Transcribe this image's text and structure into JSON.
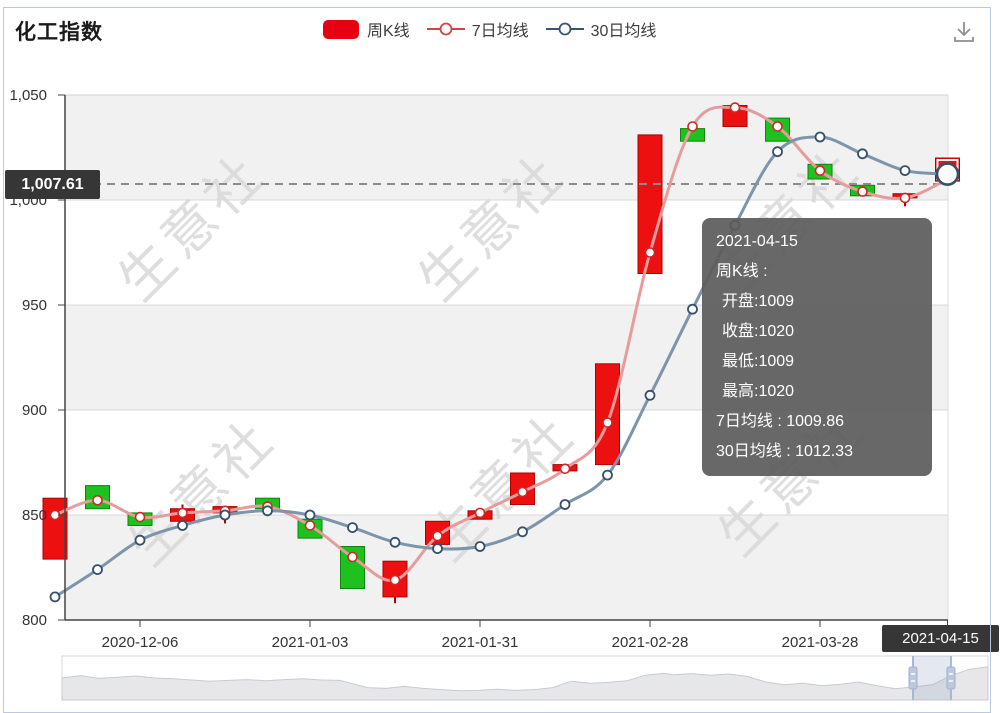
{
  "page": {
    "title": "化工指数"
  },
  "legend": [
    {
      "label": "周K线",
      "type": "candle",
      "color": "#e60012"
    },
    {
      "label": "7日均线",
      "type": "line",
      "line_color": "#e69c9c",
      "marker_color": "#cc2929"
    },
    {
      "label": "30日均线",
      "type": "line",
      "line_color": "#7e94aa",
      "marker_color": "#35506b"
    }
  ],
  "watermark": {
    "text": "生意社"
  },
  "tooltip": {
    "date": "2021-04-15",
    "series_title": "周K线 :",
    "rows": [
      "开盘:1009",
      "收盘:1020",
      "最低:1009",
      "最高:1020"
    ],
    "ma7": "7日均线 : 1009.86",
    "ma30": "30日均线 : 1012.33"
  },
  "chart_data": {
    "type": "candlestick",
    "title": "化工指数",
    "ylim": [
      800,
      1050
    ],
    "y_ticks": [
      800,
      850,
      900,
      950,
      1000,
      1050
    ],
    "y_tick_labels": [
      "800",
      "850",
      "900",
      "950",
      "1,000",
      "1,050"
    ],
    "x_tick_labels": [
      "2020-12-06",
      "2021-01-03",
      "2021-01-31",
      "2021-02-28",
      "2021-03-28",
      "2021-04-15"
    ],
    "x_tick_indices": [
      2,
      6,
      10,
      14,
      18,
      21
    ],
    "grid": "alternating-horizontal-bands",
    "legend_position": "top-center",
    "current_value": "1,007.61",
    "current_value_num": 1007.61,
    "up_color": "#ec1010",
    "down_color": "#1fc11f",
    "series": [
      {
        "name": "周K线",
        "type": "candlestick",
        "data": [
          {
            "date": "2020-11-22",
            "open": 829,
            "close": 858,
            "low": 829,
            "high": 858
          },
          {
            "date": "2020-11-29",
            "open": 864,
            "close": 853,
            "low": 853,
            "high": 864
          },
          {
            "date": "2020-12-06",
            "open": 851,
            "close": 845,
            "low": 845,
            "high": 851
          },
          {
            "date": "2020-12-13",
            "open": 847,
            "close": 853,
            "low": 847,
            "high": 855
          },
          {
            "date": "2020-12-20",
            "open": 851,
            "close": 854,
            "low": 846,
            "high": 854
          },
          {
            "date": "2020-12-27",
            "open": 858,
            "close": 853,
            "low": 853,
            "high": 858
          },
          {
            "date": "2021-01-03",
            "open": 848,
            "close": 839,
            "low": 839,
            "high": 848
          },
          {
            "date": "2021-01-10",
            "open": 835,
            "close": 815,
            "low": 815,
            "high": 835
          },
          {
            "date": "2021-01-17",
            "open": 811,
            "close": 828,
            "low": 808,
            "high": 828
          },
          {
            "date": "2021-01-24",
            "open": 836,
            "close": 847,
            "low": 836,
            "high": 847
          },
          {
            "date": "2021-01-31",
            "open": 848,
            "close": 852,
            "low": 848,
            "high": 852
          },
          {
            "date": "2021-02-07",
            "open": 855,
            "close": 870,
            "low": 855,
            "high": 870
          },
          {
            "date": "2021-02-14",
            "open": 871,
            "close": 874,
            "low": 871,
            "high": 874
          },
          {
            "date": "2021-02-21",
            "open": 874,
            "close": 922,
            "low": 874,
            "high": 922
          },
          {
            "date": "2021-02-28",
            "open": 965,
            "close": 1031,
            "low": 965,
            "high": 1031
          },
          {
            "date": "2021-03-07",
            "open": 1034,
            "close": 1028,
            "low": 1028,
            "high": 1037
          },
          {
            "date": "2021-03-14",
            "open": 1035,
            "close": 1045,
            "low": 1035,
            "high": 1045
          },
          {
            "date": "2021-03-21",
            "open": 1039,
            "close": 1028,
            "low": 1028,
            "high": 1039
          },
          {
            "date": "2021-03-28",
            "open": 1017,
            "close": 1010,
            "low": 1010,
            "high": 1017
          },
          {
            "date": "2021-04-04",
            "open": 1007,
            "close": 1002,
            "low": 1002,
            "high": 1007
          },
          {
            "date": "2021-04-11",
            "open": 1001,
            "close": 1003,
            "low": 997,
            "high": 1003
          },
          {
            "date": "2021-04-15",
            "open": 1009,
            "close": 1020,
            "low": 1009,
            "high": 1020,
            "selected": true
          }
        ]
      },
      {
        "name": "7日均线",
        "type": "line",
        "color": "#e69c9c",
        "values": [
          850,
          857,
          849,
          851,
          852,
          854,
          845,
          830,
          819,
          840,
          851,
          861,
          872,
          894,
          975,
          1035,
          1044,
          1035,
          1014,
          1004,
          1001,
          1009.86
        ]
      },
      {
        "name": "30日均线",
        "type": "line",
        "color": "#7e94aa",
        "values": [
          811,
          824,
          838,
          845,
          850,
          852,
          850,
          844,
          837,
          834,
          835,
          842,
          855,
          869,
          907,
          948,
          988,
          1023,
          1030,
          1022,
          1014,
          1012.33
        ]
      }
    ]
  },
  "navigator": {
    "selection": [
      0.919,
      0.96
    ],
    "points": [
      [
        0,
        0.5
      ],
      [
        0.02,
        0.56
      ],
      [
        0.04,
        0.49
      ],
      [
        0.06,
        0.52
      ],
      [
        0.08,
        0.55
      ],
      [
        0.1,
        0.5
      ],
      [
        0.12,
        0.48
      ],
      [
        0.14,
        0.45
      ],
      [
        0.16,
        0.42
      ],
      [
        0.18,
        0.44
      ],
      [
        0.2,
        0.46
      ],
      [
        0.22,
        0.43
      ],
      [
        0.24,
        0.46
      ],
      [
        0.26,
        0.48
      ],
      [
        0.28,
        0.45
      ],
      [
        0.3,
        0.44
      ],
      [
        0.31,
        0.38
      ],
      [
        0.33,
        0.26
      ],
      [
        0.35,
        0.24
      ],
      [
        0.37,
        0.29
      ],
      [
        0.39,
        0.24
      ],
      [
        0.41,
        0.21
      ],
      [
        0.43,
        0.18
      ],
      [
        0.45,
        0.19
      ],
      [
        0.47,
        0.22
      ],
      [
        0.49,
        0.19
      ],
      [
        0.51,
        0.21
      ],
      [
        0.53,
        0.26
      ],
      [
        0.55,
        0.42
      ],
      [
        0.57,
        0.37
      ],
      [
        0.59,
        0.39
      ],
      [
        0.61,
        0.43
      ],
      [
        0.63,
        0.57
      ],
      [
        0.65,
        0.62
      ],
      [
        0.66,
        0.58
      ],
      [
        0.68,
        0.61
      ],
      [
        0.7,
        0.57
      ],
      [
        0.72,
        0.6
      ],
      [
        0.74,
        0.54
      ],
      [
        0.76,
        0.4
      ],
      [
        0.78,
        0.33
      ],
      [
        0.8,
        0.37
      ],
      [
        0.82,
        0.31
      ],
      [
        0.84,
        0.34
      ],
      [
        0.86,
        0.4
      ],
      [
        0.88,
        0.31
      ],
      [
        0.9,
        0.23
      ],
      [
        0.92,
        0.28
      ],
      [
        0.94,
        0.33
      ],
      [
        0.96,
        0.56
      ],
      [
        0.98,
        0.72
      ],
      [
        1,
        0.78
      ]
    ]
  }
}
